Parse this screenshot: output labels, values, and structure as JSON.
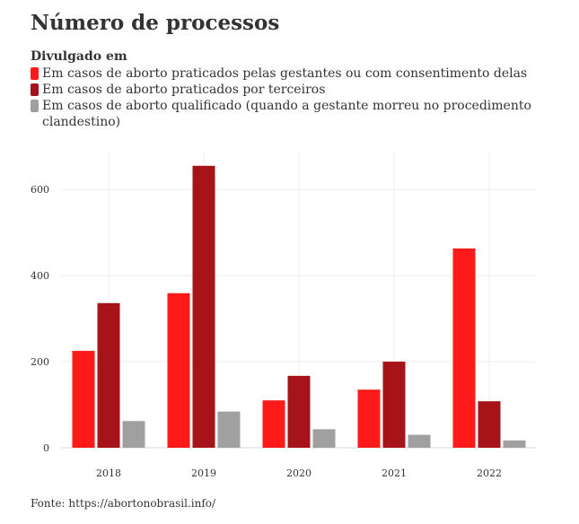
{
  "title": "Número de processos",
  "legend": {
    "title": "Divulgado em",
    "items": [
      {
        "label": "Em casos de aborto praticados pelas gestantes ou com consentimento delas",
        "color": "#ff1a1a"
      },
      {
        "label": "Em casos de aborto praticados por terceiros",
        "color": "#a6141a"
      },
      {
        "label": "Em casos de aborto qualificado (quando a gestante morreu no procedimento clandestino)",
        "color": "#a0a0a0"
      }
    ]
  },
  "source": "Fonte: https://abortonobrasil.info/",
  "chart_data": {
    "type": "bar",
    "categories": [
      "2018",
      "2019",
      "2020",
      "2021",
      "2022"
    ],
    "series": [
      {
        "name": "Em casos de aborto praticados pelas gestantes ou com consentimento delas",
        "color": "#ff1a1a",
        "values": [
          225,
          359,
          110,
          135,
          463
        ]
      },
      {
        "name": "Em casos de aborto praticados por terceiros",
        "color": "#a6141a",
        "values": [
          336,
          655,
          167,
          200,
          108
        ]
      },
      {
        "name": "Em casos de aborto qualificado (quando a gestante morreu no procedimento clandestino)",
        "color": "#a0a0a0",
        "values": [
          62,
          84,
          43,
          30,
          17
        ]
      }
    ],
    "yticks": [
      0,
      200,
      400,
      600
    ],
    "ylim": [
      0,
      690
    ],
    "grid": true,
    "legend_position": "top"
  }
}
